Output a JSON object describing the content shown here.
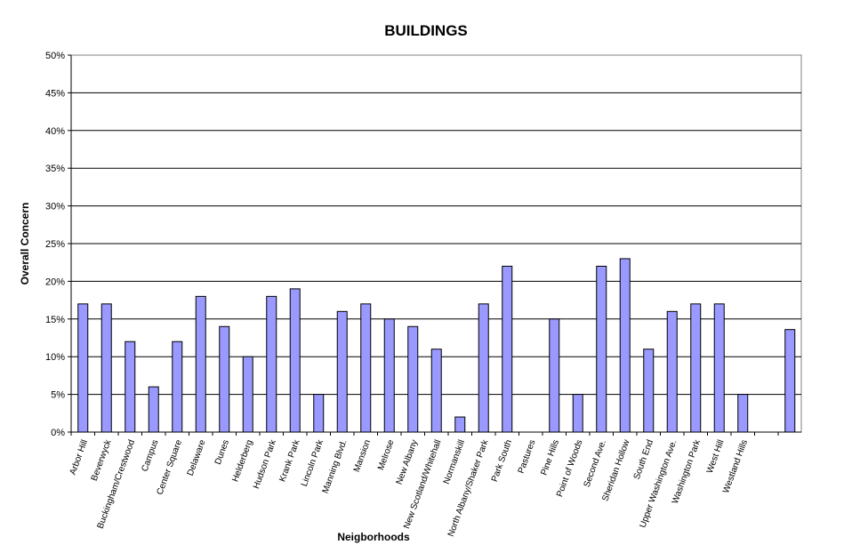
{
  "chart_data": {
    "type": "bar",
    "title": "BUILDINGS",
    "xlabel": "Neigborhoods",
    "ylabel": "Overall Concern",
    "ylim": [
      0,
      50
    ],
    "yticks": [
      "0%",
      "5%",
      "10%",
      "15%",
      "20%",
      "25%",
      "30%",
      "35%",
      "40%",
      "45%",
      "50%"
    ],
    "grid": true,
    "legend": "none",
    "bar_color": "#9999ff",
    "categories": [
      "Arbor Hill",
      "Beverwyck",
      "Buckingham/Crestwood",
      "Campus",
      "Center Square",
      "Delaware",
      "Dunes",
      "Helderberg",
      "Hudson Park",
      "Krank Park",
      "Lincoln Park",
      "Manning Blvd.",
      "Mansion",
      "Melrose",
      "New Albany",
      "New Scotland/Whitehall",
      "Normanskill",
      "North Albany/Shaker Park",
      "Park South",
      "Pastures",
      "Pine Hills",
      "Point of Woods",
      "Second Ave.",
      "Sheridan Hollow",
      "South End",
      "Upper Washington Ave.",
      "Washington Park",
      "West Hill",
      "Westland Hills",
      "",
      ""
    ],
    "values": [
      17,
      17,
      12,
      6,
      12,
      18,
      14,
      10,
      18,
      19,
      5,
      16,
      17,
      15,
      14,
      11,
      2,
      17,
      22,
      0,
      15,
      5,
      22,
      23,
      11,
      16,
      17,
      17,
      5,
      0,
      13.6
    ]
  }
}
